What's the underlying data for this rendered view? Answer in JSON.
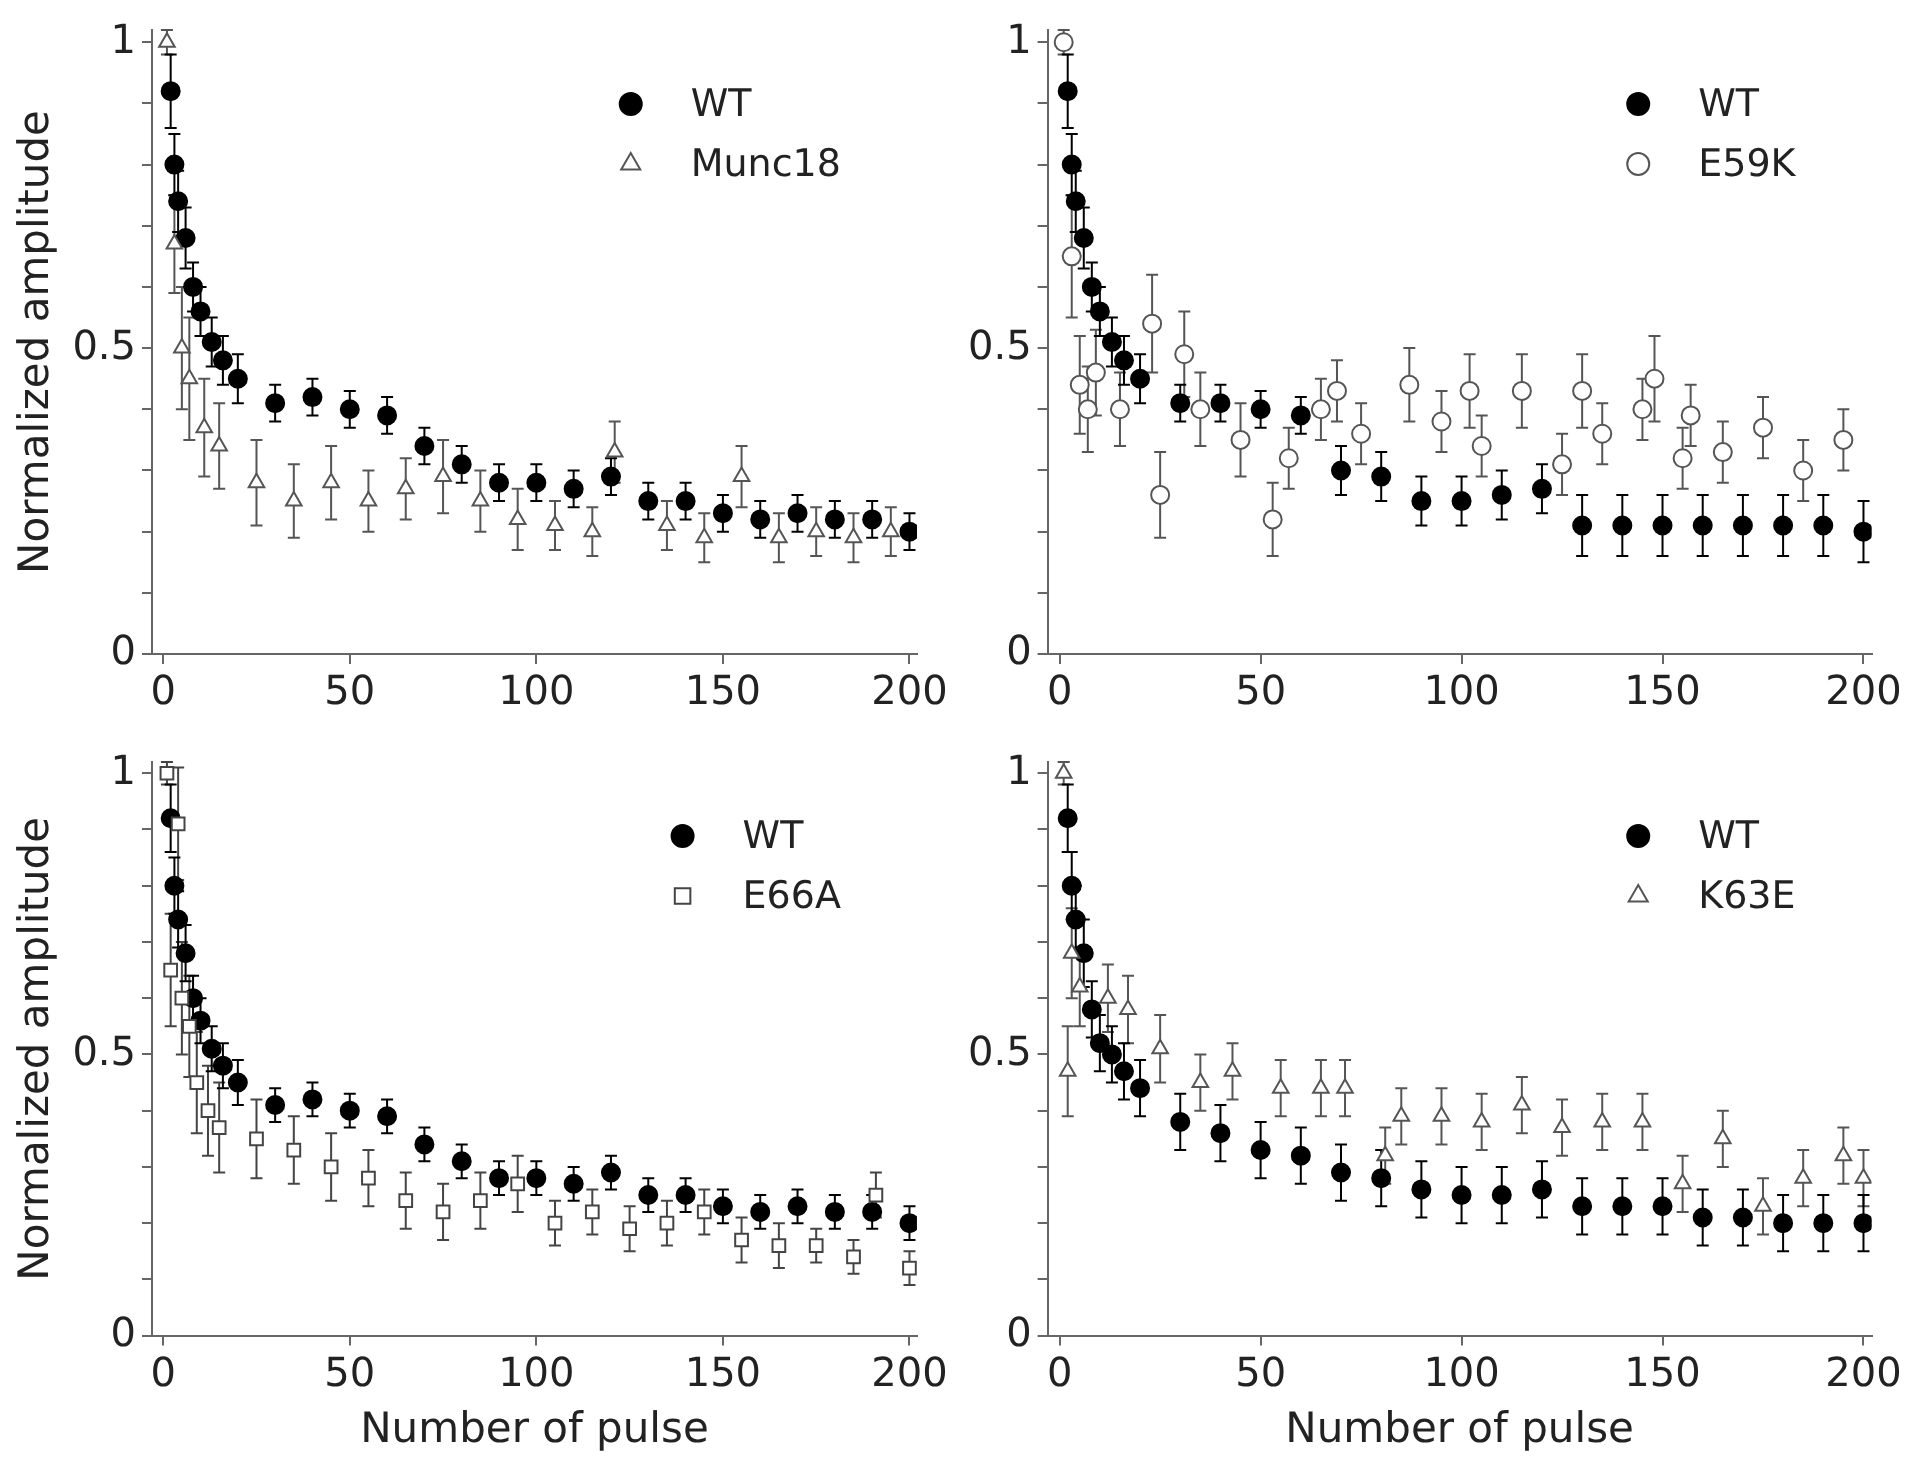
{
  "chart_data": [
    {
      "type": "scatter",
      "ylabel": "Normalized amplitude",
      "xlim": [
        -3,
        202
      ],
      "xticks": [
        0,
        50,
        100,
        150,
        200
      ],
      "ylim": [
        0,
        1.02
      ],
      "yticks": [
        0,
        {
          "value": 0.1,
          "label": null
        },
        {
          "value": 0.2,
          "label": null
        },
        {
          "value": 0.3,
          "label": null
        },
        {
          "value": 0.4,
          "label": null
        },
        0.5,
        {
          "value": 0.6,
          "label": null
        },
        {
          "value": 0.7,
          "label": null
        },
        {
          "value": 0.8,
          "label": null
        },
        {
          "value": 0.9,
          "label": null
        },
        1
      ],
      "legend": "top right",
      "series": [
        {
          "name": "WT",
          "color": "#000000",
          "marker": "circle",
          "x": [
            2,
            3,
            4,
            6,
            8,
            10,
            13,
            16,
            20,
            30,
            40,
            50,
            60,
            70,
            80,
            90,
            100,
            110,
            120,
            130,
            140,
            150,
            160,
            170,
            180,
            190,
            200
          ],
          "values": [
            0.92,
            0.8,
            0.74,
            0.68,
            0.6,
            0.56,
            0.51,
            0.48,
            0.45,
            0.41,
            0.42,
            0.4,
            0.39,
            0.34,
            0.31,
            0.28,
            0.28,
            0.27,
            0.29,
            0.25,
            0.25,
            0.23,
            0.22,
            0.23,
            0.22,
            0.22,
            0.2
          ],
          "errors": [
            0.06,
            0.05,
            0.05,
            0.05,
            0.04,
            0.04,
            0.04,
            0.04,
            0.04,
            0.03,
            0.03,
            0.03,
            0.03,
            0.03,
            0.03,
            0.03,
            0.03,
            0.03,
            0.03,
            0.03,
            0.03,
            0.03,
            0.03,
            0.03,
            0.03,
            0.03,
            0.03
          ]
        },
        {
          "name": "Munc18",
          "color": "#555555",
          "marker": "triangle",
          "x": [
            1,
            3,
            5,
            7,
            11,
            15,
            25,
            35,
            45,
            55,
            65,
            75,
            85,
            95,
            105,
            115,
            121,
            135,
            145,
            155,
            165,
            175,
            185,
            195
          ],
          "values": [
            1.0,
            0.67,
            0.5,
            0.45,
            0.37,
            0.34,
            0.28,
            0.25,
            0.28,
            0.25,
            0.27,
            0.29,
            0.25,
            0.22,
            0.21,
            0.2,
            0.33,
            0.21,
            0.19,
            0.29,
            0.19,
            0.2,
            0.19,
            0.2
          ],
          "errors": [
            0.02,
            0.08,
            0.1,
            0.1,
            0.08,
            0.07,
            0.07,
            0.06,
            0.06,
            0.05,
            0.05,
            0.06,
            0.05,
            0.05,
            0.04,
            0.04,
            0.05,
            0.04,
            0.04,
            0.05,
            0.04,
            0.04,
            0.04,
            0.04
          ]
        }
      ]
    },
    {
      "type": "scatter",
      "xlim": [
        -3,
        202
      ],
      "xticks": [
        0,
        50,
        100,
        150,
        200
      ],
      "ylim": [
        0,
        1.02
      ],
      "yticks": [
        0,
        {
          "value": 0.1,
          "label": null
        },
        {
          "value": 0.2,
          "label": null
        },
        {
          "value": 0.3,
          "label": null
        },
        {
          "value": 0.4,
          "label": null
        },
        0.5,
        {
          "value": 0.6,
          "label": null
        },
        {
          "value": 0.7,
          "label": null
        },
        {
          "value": 0.8,
          "label": null
        },
        {
          "value": 0.9,
          "label": null
        },
        1
      ],
      "legend": "top right",
      "series": [
        {
          "name": "WT",
          "color": "#000000",
          "marker": "circle",
          "x": [
            2,
            3,
            4,
            6,
            8,
            10,
            13,
            16,
            20,
            30,
            40,
            50,
            60,
            70,
            80,
            90,
            100,
            110,
            120,
            130,
            140,
            150,
            160,
            170,
            180,
            190,
            200
          ],
          "values": [
            0.92,
            0.8,
            0.74,
            0.68,
            0.6,
            0.56,
            0.51,
            0.48,
            0.45,
            0.41,
            0.41,
            0.4,
            0.39,
            0.3,
            0.29,
            0.25,
            0.25,
            0.26,
            0.27,
            0.21,
            0.21,
            0.21,
            0.21,
            0.21,
            0.21,
            0.21,
            0.2
          ],
          "errors": [
            0.06,
            0.05,
            0.05,
            0.05,
            0.04,
            0.04,
            0.04,
            0.04,
            0.04,
            0.03,
            0.03,
            0.03,
            0.03,
            0.04,
            0.04,
            0.04,
            0.04,
            0.04,
            0.04,
            0.05,
            0.05,
            0.05,
            0.05,
            0.05,
            0.05,
            0.05,
            0.05
          ]
        },
        {
          "name": "E59K",
          "color": "#555555",
          "marker": "circle",
          "x": [
            1,
            3,
            5,
            7,
            9,
            15,
            23,
            25,
            31,
            35,
            45,
            53,
            57,
            65,
            69,
            75,
            87,
            95,
            102,
            105,
            115,
            125,
            130,
            135,
            145,
            148,
            155,
            157,
            165,
            175,
            185,
            195
          ],
          "values": [
            1.0,
            0.65,
            0.44,
            0.4,
            0.46,
            0.4,
            0.54,
            0.26,
            0.49,
            0.4,
            0.35,
            0.22,
            0.32,
            0.4,
            0.43,
            0.36,
            0.44,
            0.38,
            0.43,
            0.34,
            0.43,
            0.31,
            0.43,
            0.36,
            0.4,
            0.45,
            0.32,
            0.39,
            0.33,
            0.37,
            0.3,
            0.35
          ],
          "errors": [
            0.02,
            0.1,
            0.08,
            0.07,
            0.07,
            0.06,
            0.08,
            0.07,
            0.07,
            0.06,
            0.06,
            0.06,
            0.05,
            0.05,
            0.05,
            0.05,
            0.06,
            0.05,
            0.06,
            0.05,
            0.06,
            0.05,
            0.06,
            0.05,
            0.05,
            0.07,
            0.05,
            0.05,
            0.05,
            0.05,
            0.05,
            0.05
          ]
        }
      ]
    },
    {
      "type": "scatter",
      "xlabel": "Number of pulse",
      "ylabel": "Normalized amplitude",
      "xlim": [
        -3,
        202
      ],
      "xticks": [
        0,
        50,
        100,
        150,
        200
      ],
      "ylim": [
        0,
        1.02
      ],
      "yticks": [
        0,
        {
          "value": 0.1,
          "label": null
        },
        {
          "value": 0.2,
          "label": null
        },
        {
          "value": 0.3,
          "label": null
        },
        {
          "value": 0.4,
          "label": null
        },
        0.5,
        {
          "value": 0.6,
          "label": null
        },
        {
          "value": 0.7,
          "label": null
        },
        {
          "value": 0.8,
          "label": null
        },
        {
          "value": 0.9,
          "label": null
        },
        1
      ],
      "legend": "top right",
      "series": [
        {
          "name": "WT",
          "color": "#000000",
          "marker": "circle",
          "x": [
            2,
            3,
            4,
            6,
            8,
            10,
            13,
            16,
            20,
            30,
            40,
            50,
            60,
            70,
            80,
            90,
            100,
            110,
            120,
            130,
            140,
            150,
            160,
            170,
            180,
            190,
            200
          ],
          "values": [
            0.92,
            0.8,
            0.74,
            0.68,
            0.6,
            0.56,
            0.51,
            0.48,
            0.45,
            0.41,
            0.42,
            0.4,
            0.39,
            0.34,
            0.31,
            0.28,
            0.28,
            0.27,
            0.29,
            0.25,
            0.25,
            0.23,
            0.22,
            0.23,
            0.22,
            0.22,
            0.2
          ],
          "errors": [
            0.06,
            0.05,
            0.05,
            0.05,
            0.04,
            0.04,
            0.04,
            0.04,
            0.04,
            0.03,
            0.03,
            0.03,
            0.03,
            0.03,
            0.03,
            0.03,
            0.03,
            0.03,
            0.03,
            0.03,
            0.03,
            0.03,
            0.03,
            0.03,
            0.03,
            0.03,
            0.03
          ]
        },
        {
          "name": "E66A",
          "color": "#444444",
          "marker": "square",
          "x": [
            1,
            2,
            4,
            5,
            7,
            9,
            12,
            15,
            25,
            35,
            45,
            55,
            65,
            75,
            85,
            95,
            105,
            115,
            125,
            135,
            145,
            155,
            165,
            175,
            185,
            191,
            200
          ],
          "values": [
            1.0,
            0.65,
            0.91,
            0.6,
            0.55,
            0.45,
            0.4,
            0.37,
            0.35,
            0.33,
            0.3,
            0.28,
            0.24,
            0.22,
            0.24,
            0.27,
            0.2,
            0.22,
            0.19,
            0.2,
            0.22,
            0.17,
            0.16,
            0.16,
            0.14,
            0.25,
            0.12
          ],
          "errors": [
            0.02,
            0.1,
            0.1,
            0.1,
            0.09,
            0.09,
            0.08,
            0.08,
            0.07,
            0.06,
            0.06,
            0.05,
            0.05,
            0.05,
            0.05,
            0.05,
            0.04,
            0.04,
            0.04,
            0.04,
            0.04,
            0.04,
            0.04,
            0.03,
            0.03,
            0.04,
            0.03
          ]
        }
      ]
    },
    {
      "type": "scatter",
      "xlabel": "Number of pulse",
      "xlim": [
        -3,
        202
      ],
      "xticks": [
        0,
        50,
        100,
        150,
        200
      ],
      "ylim": [
        0,
        1.02
      ],
      "yticks": [
        0,
        {
          "value": 0.1,
          "label": null
        },
        {
          "value": 0.2,
          "label": null
        },
        {
          "value": 0.3,
          "label": null
        },
        {
          "value": 0.4,
          "label": null
        },
        0.5,
        {
          "value": 0.6,
          "label": null
        },
        {
          "value": 0.7,
          "label": null
        },
        {
          "value": 0.8,
          "label": null
        },
        {
          "value": 0.9,
          "label": null
        },
        1
      ],
      "legend": "top right",
      "series": [
        {
          "name": "WT",
          "color": "#000000",
          "marker": "circle",
          "x": [
            2,
            3,
            4,
            6,
            8,
            10,
            13,
            16,
            20,
            30,
            40,
            50,
            60,
            70,
            80,
            90,
            100,
            110,
            120,
            130,
            140,
            150,
            160,
            170,
            180,
            190,
            200
          ],
          "values": [
            0.92,
            0.8,
            0.74,
            0.68,
            0.58,
            0.52,
            0.5,
            0.47,
            0.44,
            0.38,
            0.36,
            0.33,
            0.32,
            0.29,
            0.28,
            0.26,
            0.25,
            0.25,
            0.26,
            0.23,
            0.23,
            0.23,
            0.21,
            0.21,
            0.2,
            0.2,
            0.2
          ],
          "errors": [
            0.06,
            0.06,
            0.06,
            0.06,
            0.05,
            0.05,
            0.05,
            0.05,
            0.05,
            0.05,
            0.05,
            0.05,
            0.05,
            0.05,
            0.05,
            0.05,
            0.05,
            0.05,
            0.05,
            0.05,
            0.05,
            0.05,
            0.05,
            0.05,
            0.05,
            0.05,
            0.05
          ]
        },
        {
          "name": "K63E",
          "color": "#555555",
          "marker": "triangle",
          "x": [
            1,
            2,
            3,
            5,
            12,
            17,
            25,
            35,
            43,
            55,
            65,
            71,
            81,
            85,
            95,
            105,
            115,
            125,
            135,
            145,
            155,
            165,
            175,
            185,
            195,
            200
          ],
          "values": [
            1.0,
            0.47,
            0.68,
            0.62,
            0.6,
            0.58,
            0.51,
            0.45,
            0.47,
            0.44,
            0.44,
            0.44,
            0.32,
            0.39,
            0.39,
            0.38,
            0.41,
            0.37,
            0.38,
            0.38,
            0.27,
            0.35,
            0.23,
            0.28,
            0.32,
            0.28
          ],
          "errors": [
            0.02,
            0.08,
            0.08,
            0.07,
            0.06,
            0.06,
            0.06,
            0.05,
            0.05,
            0.05,
            0.05,
            0.05,
            0.05,
            0.05,
            0.05,
            0.05,
            0.05,
            0.05,
            0.05,
            0.05,
            0.05,
            0.05,
            0.05,
            0.05,
            0.05,
            0.05
          ]
        }
      ]
    }
  ]
}
